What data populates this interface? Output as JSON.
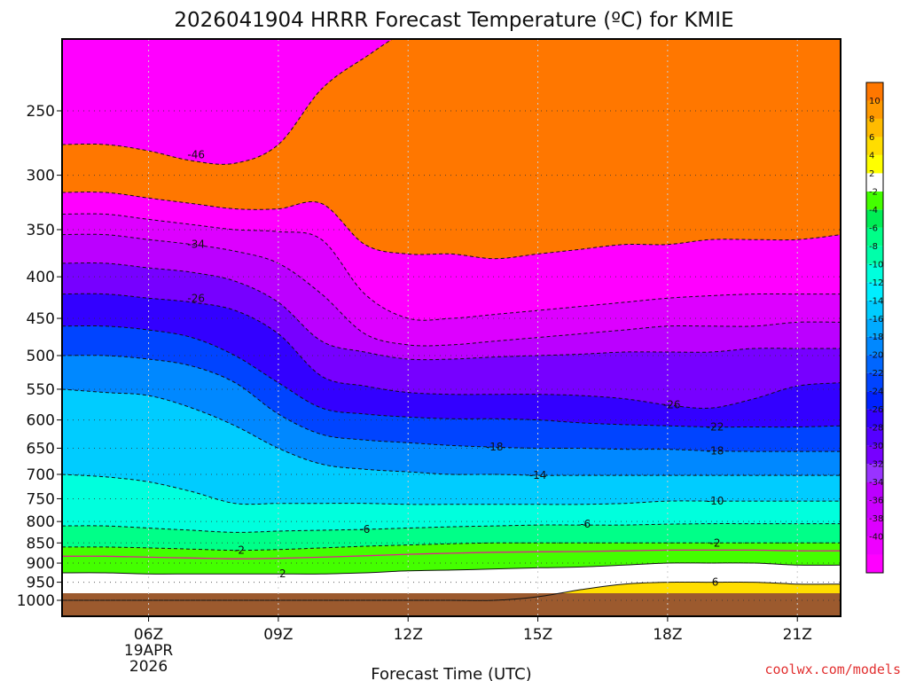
{
  "page": {
    "title": "2026041904 HRRR Forecast Temperature (ºC) for KMIE",
    "credit": "coolwx.com/models"
  },
  "chart_data": {
    "type": "heatmap",
    "title": "2026041904 HRRR Forecast Temperature (ºC) for KMIE",
    "xlabel": "Forecast Time (UTC)",
    "ylabel": "",
    "x_tick_labels": [
      "06Z",
      "09Z",
      "12Z",
      "15Z",
      "18Z",
      "21Z"
    ],
    "x_date_label": [
      "19APR",
      "2026"
    ],
    "x_tick_hours": [
      6,
      9,
      12,
      15,
      18,
      21
    ],
    "xlim_hours": [
      4,
      22
    ],
    "y_scale": "log",
    "y_reversed": true,
    "y_tick_labels": [
      "250",
      "300",
      "350",
      "400",
      "450",
      "500",
      "550",
      "600",
      "650",
      "700",
      "750",
      "800",
      "850",
      "900",
      "950",
      "1000"
    ],
    "y_tick_values": [
      250,
      300,
      350,
      400,
      450,
      500,
      550,
      600,
      650,
      700,
      750,
      800,
      850,
      900,
      950,
      1000
    ],
    "ylim_hpa": [
      200,
      1000
    ],
    "grid": true,
    "grid_style": "dotted",
    "colorbar": {
      "position": "right",
      "boundaries": [
        -42,
        -40,
        -38,
        -36,
        -34,
        -32,
        -30,
        -28,
        -26,
        -24,
        -22,
        -20,
        -18,
        -16,
        -14,
        -12,
        -10,
        -8,
        -6,
        -4,
        -2,
        2,
        4,
        6,
        8,
        10,
        12
      ],
      "labels": [
        "10",
        "8",
        "6",
        "4",
        "2",
        "-2",
        "-4",
        "-6",
        "-8",
        "-10",
        "-12",
        "-14",
        "-16",
        "-18",
        "-20",
        "-22",
        "-24",
        "-26",
        "-28",
        "-30",
        "-32",
        "-34",
        "-36",
        "-38",
        "-40"
      ],
      "colors": [
        "#ff00ff",
        "#ee00ff",
        "#dd00ff",
        "#cc00ff",
        "#bb00ff",
        "#9933ff",
        "#7700ff",
        "#5500ff",
        "#3300ff",
        "#0022ff",
        "#0044ff",
        "#0066ff",
        "#0088ff",
        "#00aaff",
        "#00ccff",
        "#00eeff",
        "#00ffdd",
        "#00ffaa",
        "#00ff88",
        "#00ee55",
        "#44ff00",
        "#ffffff",
        "#ffff00",
        "#ffdd00",
        "#ffbb00",
        "#ff9900",
        "#ff7700"
      ]
    },
    "ground_color": "#9c5a2e",
    "columns_hours": [
      4,
      5,
      6,
      7,
      8,
      9,
      10,
      11,
      12,
      13,
      14,
      15,
      16,
      17,
      18,
      19,
      20,
      21,
      22
    ],
    "isotherms": [
      {
        "temp": -46,
        "pressure_by_hour": [
          275,
          275,
          280,
          288,
          290,
          275,
          235,
          215,
          200,
          200,
          200,
          200,
          200,
          200,
          200,
          200,
          200,
          200,
          200
        ]
      },
      {
        "temp": -42,
        "pressure_by_hour": [
          315,
          315,
          320,
          325,
          330,
          330,
          325,
          365,
          375,
          375,
          380,
          375,
          370,
          365,
          365,
          360,
          360,
          360,
          355
        ]
      },
      {
        "temp": -38,
        "pressure_by_hour": [
          335,
          335,
          340,
          345,
          350,
          352,
          360,
          420,
          450,
          450,
          445,
          440,
          435,
          430,
          425,
          422,
          420,
          420,
          420
        ]
      },
      {
        "temp": -34,
        "pressure_by_hour": [
          355,
          355,
          360,
          365,
          372,
          385,
          420,
          470,
          485,
          485,
          480,
          475,
          470,
          465,
          460,
          460,
          460,
          455,
          455
        ]
      },
      {
        "temp": -30,
        "pressure_by_hour": [
          385,
          385,
          390,
          395,
          405,
          430,
          480,
          495,
          505,
          505,
          502,
          500,
          498,
          495,
          495,
          495,
          490,
          490,
          490
        ]
      },
      {
        "temp": -26,
        "pressure_by_hour": [
          420,
          420,
          425,
          430,
          440,
          470,
          530,
          545,
          555,
          558,
          558,
          558,
          560,
          565,
          575,
          580,
          565,
          545,
          540
        ]
      },
      {
        "temp": -22,
        "pressure_by_hour": [
          460,
          460,
          465,
          475,
          500,
          540,
          580,
          590,
          595,
          598,
          598,
          600,
          605,
          608,
          610,
          612,
          612,
          612,
          610
        ]
      },
      {
        "temp": -18,
        "pressure_by_hour": [
          500,
          500,
          505,
          515,
          540,
          590,
          625,
          635,
          640,
          645,
          648,
          650,
          650,
          652,
          652,
          655,
          656,
          656,
          656
        ]
      },
      {
        "temp": -14,
        "pressure_by_hour": [
          550,
          555,
          560,
          580,
          610,
          650,
          680,
          690,
          695,
          700,
          700,
          702,
          702,
          702,
          702,
          702,
          702,
          702,
          702
        ]
      },
      {
        "temp": -10,
        "pressure_by_hour": [
          700,
          705,
          715,
          735,
          760,
          760,
          760,
          760,
          762,
          762,
          762,
          762,
          762,
          760,
          755,
          755,
          755,
          755,
          755
        ]
      },
      {
        "temp": -6,
        "pressure_by_hour": [
          810,
          810,
          815,
          820,
          825,
          822,
          820,
          818,
          815,
          812,
          810,
          808,
          808,
          808,
          806,
          805,
          805,
          805,
          805
        ]
      },
      {
        "temp": -2,
        "pressure_by_hour": [
          860,
          860,
          862,
          865,
          868,
          866,
          862,
          858,
          855,
          852,
          850,
          850,
          850,
          850,
          850,
          850,
          850,
          850,
          850
        ]
      },
      {
        "temp": 2,
        "pressure_by_hour": [
          925,
          925,
          928,
          928,
          928,
          928,
          928,
          925,
          920,
          918,
          915,
          912,
          910,
          905,
          900,
          900,
          900,
          905,
          905
        ]
      },
      {
        "temp": 6,
        "pressure_by_hour": [
          1000,
          1000,
          1000,
          1000,
          1000,
          1000,
          1000,
          1000,
          1000,
          1000,
          1000,
          990,
          970,
          955,
          950,
          950,
          950,
          955,
          955
        ]
      }
    ],
    "contour_labels": [
      {
        "text": "-46",
        "hour": 7.1,
        "pressure": 283
      },
      {
        "text": "-34",
        "hour": 7.1,
        "pressure": 365
      },
      {
        "text": "-26",
        "hour": 7.1,
        "pressure": 425
      },
      {
        "text": "-26",
        "hour": 18.1,
        "pressure": 575
      },
      {
        "text": "-22",
        "hour": 19.1,
        "pressure": 612
      },
      {
        "text": "-18",
        "hour": 14.0,
        "pressure": 648
      },
      {
        "text": "-18",
        "hour": 19.1,
        "pressure": 655
      },
      {
        "text": "-14",
        "hour": 15.0,
        "pressure": 702
      },
      {
        "text": "-10",
        "hour": 19.1,
        "pressure": 755
      },
      {
        "text": "-6",
        "hour": 11.0,
        "pressure": 818
      },
      {
        "text": "-6",
        "hour": 16.1,
        "pressure": 806
      },
      {
        "text": "-2",
        "hour": 8.1,
        "pressure": 868
      },
      {
        "text": "-2",
        "hour": 19.1,
        "pressure": 850
      },
      {
        "text": "2",
        "hour": 9.1,
        "pressure": 928
      },
      {
        "text": "6",
        "hour": 19.1,
        "pressure": 950
      }
    ]
  }
}
